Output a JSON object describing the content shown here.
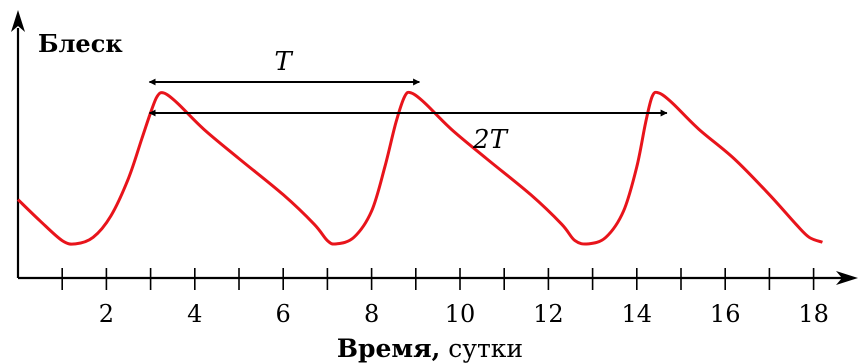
{
  "chart_data": {
    "type": "line",
    "ylabel": "Блеск",
    "xlabel_bold": "Время,",
    "xlabel_unit": " сутки",
    "xlim": [
      0,
      19
    ],
    "x_ticks": [
      2,
      4,
      6,
      8,
      10,
      12,
      14,
      16,
      18
    ],
    "series": [
      {
        "color": "#e8141b",
        "points": [
          [
            0,
            0.35
          ],
          [
            0.5,
            0.22
          ],
          [
            1.0,
            0.1
          ],
          [
            1.3,
            0.08
          ],
          [
            1.7,
            0.12
          ],
          [
            2.1,
            0.25
          ],
          [
            2.5,
            0.48
          ],
          [
            2.8,
            0.72
          ],
          [
            3.0,
            0.88
          ],
          [
            3.15,
            0.98
          ],
          [
            3.3,
            1.0
          ],
          [
            3.6,
            0.94
          ],
          [
            4.2,
            0.78
          ],
          [
            5.0,
            0.6
          ],
          [
            6.0,
            0.38
          ],
          [
            6.7,
            0.2
          ],
          [
            7.0,
            0.1
          ],
          [
            7.2,
            0.08
          ],
          [
            7.6,
            0.12
          ],
          [
            8.0,
            0.28
          ],
          [
            8.3,
            0.55
          ],
          [
            8.55,
            0.82
          ],
          [
            8.75,
            0.98
          ],
          [
            8.9,
            1.0
          ],
          [
            9.2,
            0.94
          ],
          [
            9.8,
            0.78
          ],
          [
            10.6,
            0.6
          ],
          [
            11.6,
            0.38
          ],
          [
            12.3,
            0.2
          ],
          [
            12.6,
            0.1
          ],
          [
            12.9,
            0.08
          ],
          [
            13.3,
            0.12
          ],
          [
            13.7,
            0.28
          ],
          [
            14.0,
            0.55
          ],
          [
            14.2,
            0.82
          ],
          [
            14.35,
            0.98
          ],
          [
            14.5,
            1.0
          ],
          [
            14.8,
            0.94
          ],
          [
            15.4,
            0.78
          ],
          [
            16.2,
            0.6
          ],
          [
            17.0,
            0.38
          ],
          [
            17.6,
            0.2
          ],
          [
            17.9,
            0.12
          ],
          [
            18.2,
            0.09
          ]
        ]
      }
    ],
    "annotations": [
      {
        "label": "T",
        "from": 3.2,
        "to": 8.9
      },
      {
        "label": "2T",
        "from": 3.2,
        "to": 14.5
      }
    ]
  }
}
